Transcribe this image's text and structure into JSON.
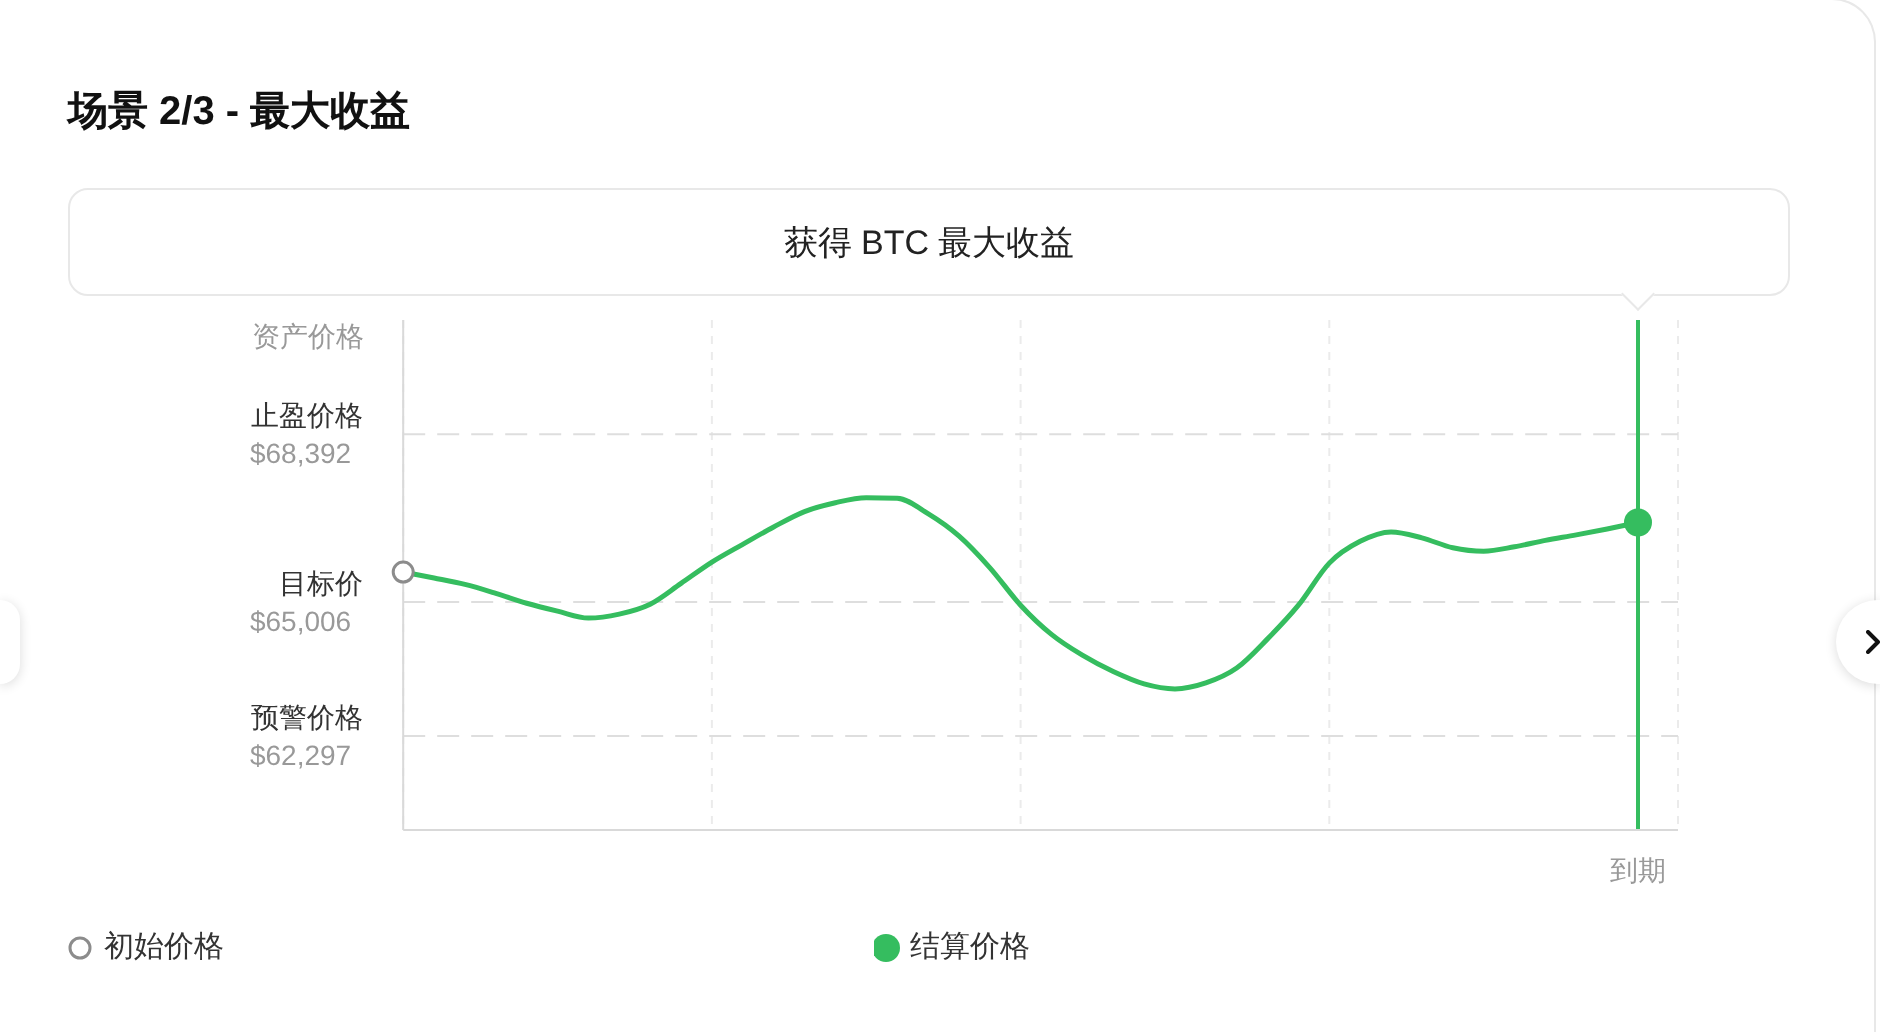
{
  "chart_data": {
    "type": "line",
    "title": "场景 2/3 - 最大收益",
    "ylabel": "资产价格",
    "annotations": [
      "获得 BTC 最大收益"
    ],
    "categories": [
      null,
      null,
      null,
      null,
      null,
      null,
      null,
      null,
      null,
      null,
      null,
      null,
      null,
      null,
      null,
      null,
      null,
      null,
      null,
      null,
      null,
      null,
      null,
      null,
      null,
      null,
      null,
      null,
      null,
      null,
      null,
      null,
      null,
      null,
      null,
      null,
      null,
      null,
      null,
      null,
      "到期"
    ],
    "ylim": [
      60400,
      70700
    ],
    "yticks": [
      {
        "value": 62297,
        "label": "$62,297"
      },
      {
        "value": 65006,
        "label": "$65,006"
      },
      {
        "value": 68392,
        "label": "$68,392"
      }
    ],
    "series": [
      {
        "color": "#35bd5f",
        "values": [
          65610,
          65490,
          65360,
          65180,
          64980,
          64820,
          64680,
          64760,
          64960,
          65380,
          65810,
          66170,
          66520,
          66830,
          67010,
          67110,
          67100,
          66790,
          66340,
          65700,
          64940,
          64350,
          63930,
          63600,
          63350,
          63250,
          63370,
          63670,
          64260,
          64940,
          65790,
          66230,
          66420,
          66300,
          66100,
          66030,
          66120,
          66250,
          66360,
          66480,
          66610
        ]
      },
      {
        "type": "scatter",
        "name": "初始价格",
        "color": "#8c8c8c",
        "marker": "circle",
        "values": [
          65610,
          null,
          null,
          null,
          null,
          null,
          null,
          null,
          null,
          null,
          null,
          null,
          null,
          null,
          null,
          null,
          null,
          null,
          null,
          null,
          null,
          null,
          null,
          null,
          null,
          null,
          null,
          null,
          null,
          null,
          null,
          null,
          null,
          null,
          null,
          null,
          null,
          null,
          null,
          null,
          null
        ]
      },
      {
        "type": "scatter",
        "name": "结算价格",
        "color": "#35bd5f",
        "marker": "circle",
        "values": [
          null,
          null,
          null,
          null,
          null,
          null,
          null,
          null,
          null,
          null,
          null,
          null,
          null,
          null,
          null,
          null,
          null,
          null,
          null,
          null,
          null,
          null,
          null,
          null,
          null,
          null,
          null,
          null,
          null,
          null,
          null,
          null,
          null,
          null,
          null,
          null,
          null,
          null,
          null,
          null,
          66610
        ]
      }
    ],
    "ref_lines": [
      {
        "axis": "y",
        "value": 68392,
        "label": "止盈价格",
        "color": "#dedede",
        "line_style": "dashed"
      },
      {
        "axis": "y",
        "value": 65006,
        "label": "目标价",
        "color": "#dedede",
        "line_style": "dashed"
      },
      {
        "axis": "y",
        "value": 62297,
        "label": "预警价格",
        "color": "#dedede",
        "line_style": "dashed"
      },
      {
        "axis": "x",
        "value": "到期",
        "color": "#35bd5f",
        "line_style": "solid"
      }
    ],
    "grid": "x",
    "legend": "bottom"
  }
}
